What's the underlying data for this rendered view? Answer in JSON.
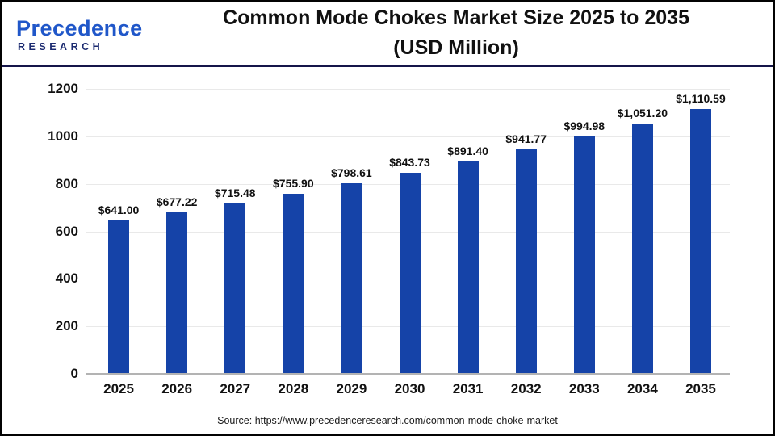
{
  "header": {
    "logo": {
      "name": "Precedence",
      "subname": "RESEARCH"
    },
    "title_line1": "Common Mode Chokes Market Size 2025 to 2035",
    "title_line2": "(USD Million)"
  },
  "chart_data": {
    "type": "bar",
    "title": "Common Mode Chokes Market Size 2025 to 2035 (USD Million)",
    "categories": [
      "2025",
      "2026",
      "2027",
      "2028",
      "2029",
      "2030",
      "2031",
      "2032",
      "2033",
      "2034",
      "2035"
    ],
    "values": [
      641.0,
      677.22,
      715.48,
      755.9,
      798.61,
      843.73,
      891.4,
      941.77,
      994.98,
      1051.2,
      1110.59
    ],
    "bar_labels": [
      "$641.00",
      "$677.22",
      "$715.48",
      "$755.90",
      "$798.61",
      "$843.73",
      "$891.40",
      "$941.77",
      "$994.98",
      "$1,051.20",
      "$1,110.59"
    ],
    "xlabel": "",
    "ylabel": "",
    "ylim": [
      0,
      1200
    ],
    "yticks": [
      0,
      200,
      400,
      600,
      800,
      1000,
      1200
    ],
    "grid": true,
    "legend": false,
    "bar_color": "#1543a8"
  },
  "footer": {
    "source": "Source: https://www.precedenceresearch.com/common-mode-choke-market"
  }
}
